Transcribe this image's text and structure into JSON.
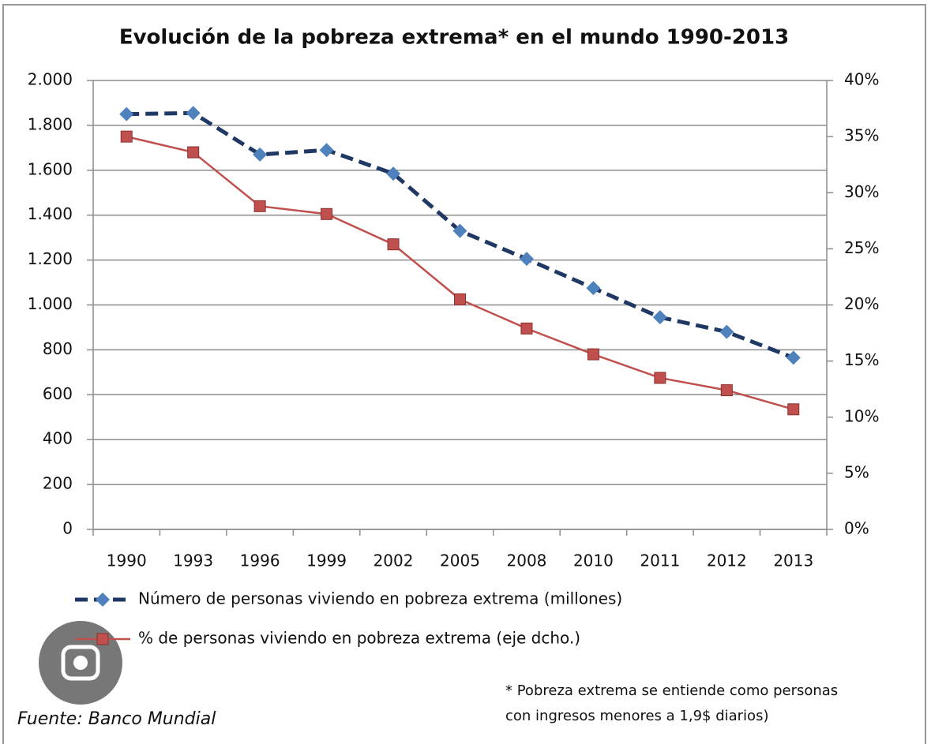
{
  "chart_data": {
    "type": "line",
    "title": "Evolución de la pobreza extrema* en el mundo 1990-2013",
    "categories": [
      "1990",
      "1993",
      "1996",
      "1999",
      "2002",
      "2005",
      "2008",
      "2010",
      "2011",
      "2012",
      "2013"
    ],
    "series": [
      {
        "name": "Número de personas viviendo en pobreza extrema (millones)",
        "color": "#1f3864",
        "marker_color": "#4f81bd",
        "marker": "diamond",
        "dashed": true,
        "values": [
          1850,
          1855,
          1670,
          1690,
          1585,
          1330,
          1205,
          1075,
          945,
          880,
          765
        ]
      },
      {
        "name": "% de personas viviendo en pobreza extrema (eje dcho.)",
        "color": "#c0504d",
        "marker_color": "#c0504d",
        "marker": "square",
        "dashed": false,
        "axis": "y2",
        "values": [
          35.0,
          33.6,
          28.8,
          28.1,
          25.4,
          20.5,
          17.9,
          15.6,
          13.5,
          12.4,
          10.7
        ]
      }
    ],
    "ylim": [
      0,
      2000
    ],
    "yticks": [
      0,
      200,
      400,
      600,
      800,
      {
        "value": 1000,
        "label": "1.000"
      },
      {
        "value": 1200,
        "label": "1.200"
      },
      {
        "value": 1400,
        "label": "1.400"
      },
      {
        "value": 1600,
        "label": "1.600"
      },
      {
        "value": 1800,
        "label": "1.800"
      },
      {
        "value": 2000,
        "label": "2.000"
      }
    ],
    "y2lim": [
      0,
      40
    ],
    "y2ticks": [
      {
        "value": 0,
        "label": "0%"
      },
      {
        "value": 5,
        "label": "5%"
      },
      {
        "value": 10,
        "label": "10%"
      },
      {
        "value": 15,
        "label": "15%"
      },
      {
        "value": 20,
        "label": "20%"
      },
      {
        "value": 25,
        "label": "25%"
      },
      {
        "value": 30,
        "label": "30%"
      },
      {
        "value": 35,
        "label": "35%"
      },
      {
        "value": 40,
        "label": "40%"
      }
    ],
    "grid": true,
    "legend": "bottom",
    "footnote": [
      "* Pobreza extrema se entiende como  personas",
      "con ingresos menores a 1,9$ diarios)"
    ],
    "source": "Fuente: Banco Mundial"
  }
}
